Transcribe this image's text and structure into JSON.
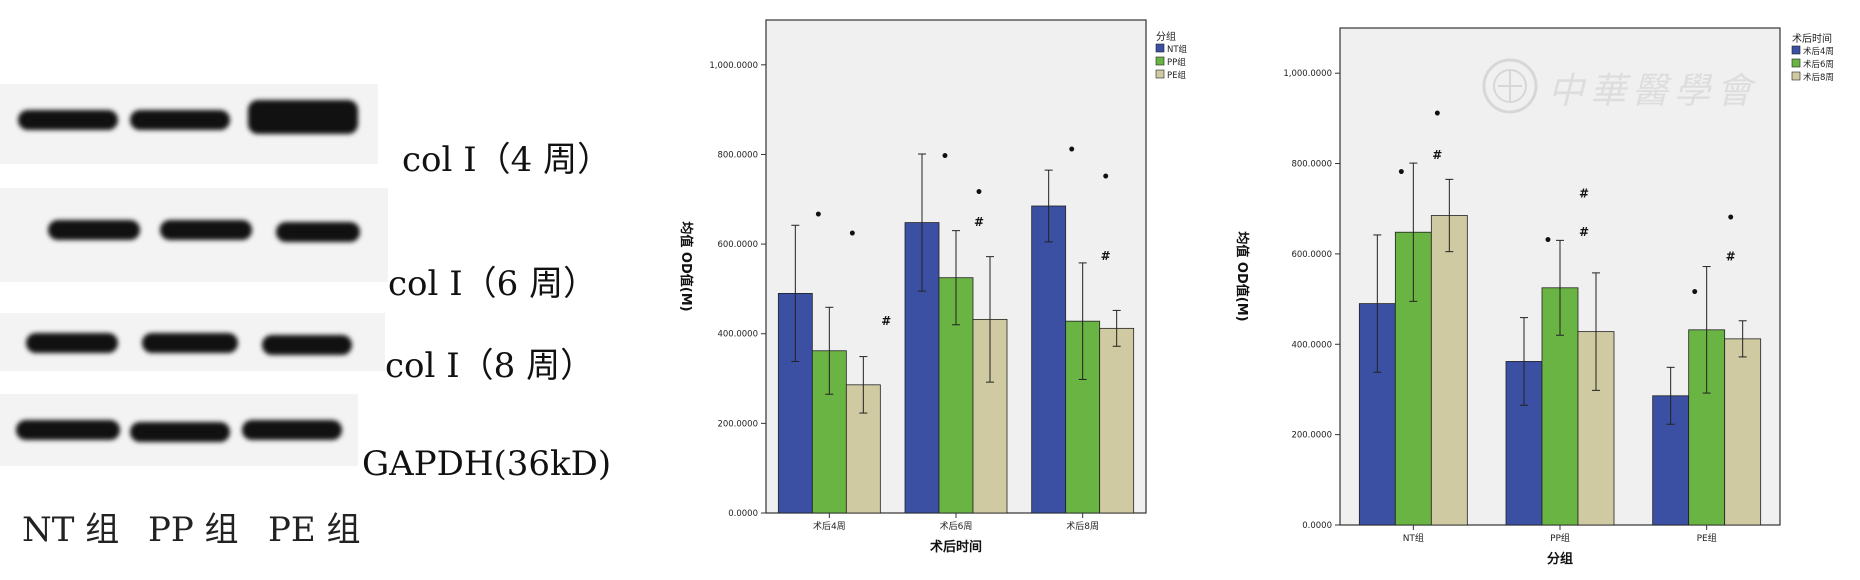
{
  "blot": {
    "labels": [
      "col I（4 周）",
      "col I（6 周）",
      "col I（8 周）",
      "GAPDH(36kD)"
    ],
    "lanes": [
      "NT 组",
      "PP 组",
      "PE 组"
    ]
  },
  "watermark": {
    "text": "中華醫學會"
  },
  "chart_data": [
    {
      "type": "bar",
      "title": "",
      "xlabel": "术后时间",
      "ylabel": "均值 OD值(M)",
      "legend_title": "分组",
      "legend_position": "top-right",
      "categories": [
        "术后4周",
        "术后6周",
        "术后8周"
      ],
      "ylim": [
        0,
        1100
      ],
      "yticks": [
        0,
        200,
        400,
        600,
        800,
        1000
      ],
      "ytick_labels": [
        "0.0000",
        "200.0000",
        "400.0000",
        "600.0000",
        "800.0000",
        "1,000.0000"
      ],
      "series": [
        {
          "name": "NT组",
          "color": "#3b4fa3",
          "values": [
            490,
            648,
            685
          ],
          "err": [
            152,
            153,
            80
          ]
        },
        {
          "name": "PP组",
          "color": "#6ab443",
          "values": [
            362,
            525,
            428
          ],
          "err": [
            97,
            105,
            130
          ]
        },
        {
          "name": "PE组",
          "color": "#cfcaa2",
          "values": [
            286,
            432,
            412
          ],
          "err": [
            63,
            140,
            40
          ]
        }
      ],
      "annotations": [
        {
          "category": 0,
          "series": 0,
          "mark": "•",
          "value": 655
        },
        {
          "category": 0,
          "series": 1,
          "mark": "•",
          "value": 612
        },
        {
          "category": 0,
          "series": 2,
          "mark": "#",
          "value": 420
        },
        {
          "category": 1,
          "series": 0,
          "mark": "•",
          "value": 785
        },
        {
          "category": 1,
          "series": 1,
          "mark": "•",
          "value": 705
        },
        {
          "category": 1,
          "series": 1,
          "mark": "#",
          "value": 640
        },
        {
          "category": 2,
          "series": 0,
          "mark": "•",
          "value": 800
        },
        {
          "category": 2,
          "series": 1,
          "mark": "•",
          "value": 740
        },
        {
          "category": 2,
          "series": 1,
          "mark": "#",
          "value": 565
        }
      ]
    },
    {
      "type": "bar",
      "title": "",
      "xlabel": "分组",
      "ylabel": "均值 OD值(M)",
      "legend_title": "术后时间",
      "legend_position": "top-right",
      "categories": [
        "NT组",
        "PP组",
        "PE组"
      ],
      "ylim": [
        0,
        1100
      ],
      "yticks": [
        0,
        200,
        400,
        600,
        800,
        1000
      ],
      "ytick_labels": [
        "0.0000",
        "200.0000",
        "400.0000",
        "600.0000",
        "800.0000",
        "1,000.0000"
      ],
      "series": [
        {
          "name": "术后4周",
          "color": "#3b4fa3",
          "values": [
            490,
            362,
            286
          ],
          "err": [
            152,
            97,
            63
          ]
        },
        {
          "name": "术后6周",
          "color": "#6ab443",
          "values": [
            648,
            525,
            432
          ],
          "err": [
            153,
            105,
            140
          ]
        },
        {
          "name": "术后8周",
          "color": "#cfcaa2",
          "values": [
            685,
            428,
            412
          ],
          "err": [
            80,
            130,
            40
          ]
        }
      ],
      "annotations": [
        {
          "category": 0,
          "series": 0,
          "mark": "•",
          "value": 770
        },
        {
          "category": 0,
          "series": 1,
          "mark": "•",
          "value": 900
        },
        {
          "category": 0,
          "series": 1,
          "mark": "#",
          "value": 810
        },
        {
          "category": 1,
          "series": 0,
          "mark": "•",
          "value": 620
        },
        {
          "category": 1,
          "series": 1,
          "mark": "#",
          "value": 725
        },
        {
          "category": 1,
          "series": 1,
          "mark": "#",
          "value": 640
        },
        {
          "category": 2,
          "series": 0,
          "mark": "•",
          "value": 505
        },
        {
          "category": 2,
          "series": 1,
          "mark": "•",
          "value": 670
        },
        {
          "category": 2,
          "series": 1,
          "mark": "#",
          "value": 585
        }
      ]
    }
  ]
}
